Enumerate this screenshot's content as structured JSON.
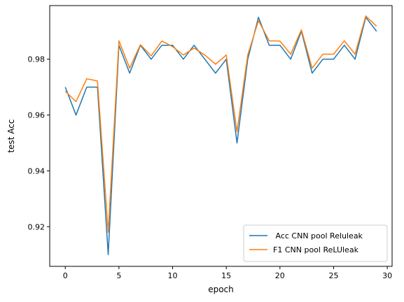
{
  "chart_data": {
    "type": "line",
    "title": "",
    "xlabel": "epoch",
    "ylabel": "test Acc",
    "xlim": [
      -1.45,
      30.45
    ],
    "ylim": [
      0.9058,
      0.9992
    ],
    "xticks": [
      0,
      5,
      10,
      15,
      20,
      25,
      30
    ],
    "yticks": [
      0.92,
      0.94,
      0.96,
      0.98
    ],
    "ytick_labels": [
      "0.92",
      "0.94",
      "0.96",
      "0.98"
    ],
    "grid": false,
    "legend_position": "lower-right",
    "x": [
      0,
      1,
      2,
      3,
      4,
      5,
      6,
      7,
      8,
      9,
      10,
      11,
      12,
      13,
      14,
      15,
      16,
      17,
      18,
      19,
      20,
      21,
      22,
      23,
      24,
      25,
      26,
      27,
      28,
      29
    ],
    "series": [
      {
        "name": " Acc CNN pool Reluleak",
        "color": "#1f77b4",
        "values": [
          0.97,
          0.96,
          0.97,
          0.97,
          0.91,
          0.985,
          0.975,
          0.985,
          0.98,
          0.985,
          0.985,
          0.98,
          0.985,
          0.98,
          0.975,
          0.98,
          0.95,
          0.98,
          0.995,
          0.985,
          0.985,
          0.98,
          0.99,
          0.975,
          0.98,
          0.98,
          0.985,
          0.98,
          0.995,
          0.99
        ]
      },
      {
        "name": "F1 CNN pool ReLUleak",
        "color": "#ff7f0e",
        "values": [
          0.9685,
          0.9648,
          0.973,
          0.9722,
          0.918,
          0.9866,
          0.9768,
          0.9852,
          0.9812,
          0.9865,
          0.9845,
          0.9815,
          0.984,
          0.9815,
          0.9782,
          0.9815,
          0.954,
          0.9815,
          0.9938,
          0.9866,
          0.9865,
          0.9818,
          0.9905,
          0.9768,
          0.9818,
          0.9818,
          0.9866,
          0.9818,
          0.9955,
          0.9918
        ]
      }
    ]
  }
}
